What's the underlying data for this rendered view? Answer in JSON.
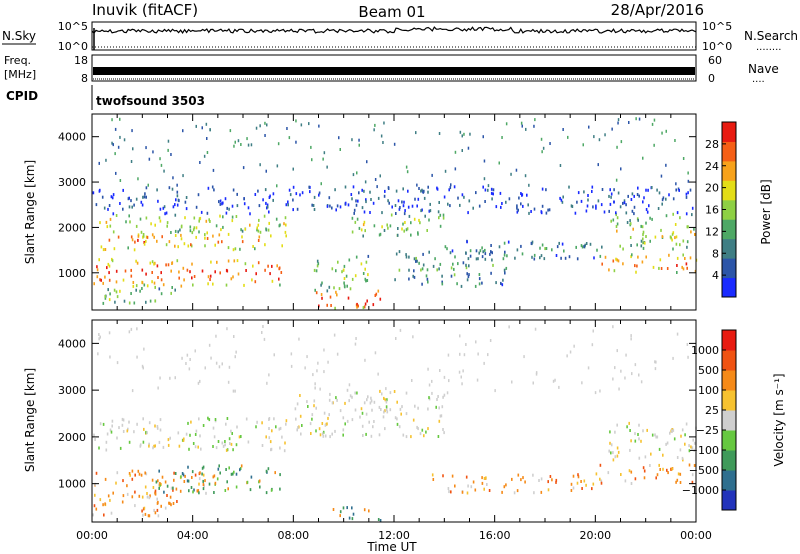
{
  "header": {
    "station": "Inuvik (fitACF)",
    "beam": "Beam 01",
    "date": "28/Apr/2016"
  },
  "status_panels": {
    "sky": {
      "left_label": "N.Sky",
      "left_ticks": [
        "10^5",
        "10^0"
      ],
      "right_ticks": [
        "10^5",
        "10^0"
      ],
      "right_label": "N.Search",
      "right_dots": "........"
    },
    "freq": {
      "left_label_1": "Freq.",
      "left_label_2": "[MHz]",
      "left_ticks": [
        "18",
        "8"
      ],
      "right_ticks": [
        "60",
        "0"
      ],
      "right_label": "Nave",
      "right_dots": "...."
    },
    "cpid": {
      "label": "CPID",
      "program": "twofsound 3503"
    }
  },
  "chart_data": [
    {
      "type": "heatmap",
      "parameter": "power",
      "ylabel": "Slant Range [km]",
      "y_ticks": [
        "1000",
        "2000",
        "3000",
        "4000"
      ],
      "ylim": [
        180,
        4500
      ],
      "x_ticks": [
        "00:00",
        "04:00",
        "08:00",
        "12:00",
        "16:00",
        "20:00",
        "00:00"
      ],
      "colorbar": {
        "label": "Power [dB]",
        "ticks": [
          "28",
          "24",
          "20",
          "16",
          "12",
          "8",
          "4"
        ],
        "colors": [
          "#1a2bff",
          "#2c55a8",
          "#3f7e84",
          "#4ea865",
          "#8ed044",
          "#e3dd17",
          "#f7a21b",
          "#f55f16",
          "#e81b11"
        ]
      },
      "scatter_bands": [
        {
          "t0": 0.0,
          "t1": 7.7,
          "r0": 1900,
          "r1": 2300,
          "level": 0.55
        },
        {
          "t0": 0.0,
          "t1": 7.7,
          "r0": 1500,
          "r1": 1900,
          "level": 0.75
        },
        {
          "t0": 0.0,
          "t1": 7.5,
          "r0": 700,
          "r1": 1300,
          "level": 0.85
        },
        {
          "t0": 0.2,
          "t1": 3.5,
          "r0": 300,
          "r1": 700,
          "level": 0.45
        },
        {
          "t0": 8.8,
          "t1": 11.5,
          "r0": 200,
          "r1": 600,
          "level": 0.95
        },
        {
          "t0": 8.8,
          "t1": 11.0,
          "r0": 600,
          "r1": 1400,
          "level": 0.5
        },
        {
          "t0": 10.0,
          "t1": 14.0,
          "r0": 1800,
          "r1": 2300,
          "level": 0.5
        },
        {
          "t0": 12.0,
          "t1": 16.5,
          "r0": 700,
          "r1": 1500,
          "level": 0.35
        },
        {
          "t0": 14.0,
          "t1": 20.5,
          "r0": 1300,
          "r1": 1700,
          "level": 0.3
        },
        {
          "t0": 20.0,
          "t1": 24.0,
          "r0": 1000,
          "r1": 1400,
          "level": 0.8
        },
        {
          "t0": 20.5,
          "t1": 24.0,
          "r0": 1500,
          "r1": 2300,
          "level": 0.55
        },
        {
          "t0": 0.0,
          "t1": 24.0,
          "r0": 2300,
          "r1": 2900,
          "level": 0.15
        }
      ]
    },
    {
      "type": "heatmap",
      "parameter": "velocity",
      "ylabel": "Slant Range [km]",
      "y_ticks": [
        "1000",
        "2000",
        "3000",
        "4000"
      ],
      "ylim": [
        180,
        4500
      ],
      "x_ticks": [
        "00:00",
        "04:00",
        "08:00",
        "12:00",
        "16:00",
        "20:00",
        "00:00"
      ],
      "xlabel": "Time UT",
      "colorbar": {
        "label": "Velocity [m s⁻¹]",
        "ticks": [
          "1000",
          "500",
          "100",
          "25",
          "−25",
          "−100",
          "−500",
          "−1000"
        ],
        "colors": [
          "#2233bb",
          "#2f6f8f",
          "#3f9a5a",
          "#66c840",
          "#cfcfcf",
          "#f6c230",
          "#f58a18",
          "#f05312",
          "#e81b11"
        ]
      },
      "scatter_bands": [
        {
          "t0": 0.0,
          "t1": 7.7,
          "r0": 1700,
          "r1": 2400,
          "kind": "gray"
        },
        {
          "t0": 0.0,
          "t1": 4.5,
          "r0": 700,
          "r1": 1300,
          "kind": "orange"
        },
        {
          "t0": 2.5,
          "t1": 7.5,
          "r0": 800,
          "r1": 1400,
          "kind": "green"
        },
        {
          "t0": 0.0,
          "t1": 3.5,
          "r0": 300,
          "r1": 800,
          "kind": "orange"
        },
        {
          "t0": 9.5,
          "t1": 11.5,
          "r0": 200,
          "r1": 500,
          "kind": "green"
        },
        {
          "t0": 8.0,
          "t1": 14.0,
          "r0": 2000,
          "r1": 3000,
          "kind": "gray"
        },
        {
          "t0": 13.5,
          "t1": 20.0,
          "r0": 800,
          "r1": 1200,
          "kind": "orange"
        },
        {
          "t0": 20.0,
          "t1": 24.0,
          "r0": 1000,
          "r1": 1400,
          "kind": "orange"
        },
        {
          "t0": 20.5,
          "t1": 24.0,
          "r0": 1500,
          "r1": 2300,
          "kind": "gray"
        }
      ]
    }
  ]
}
